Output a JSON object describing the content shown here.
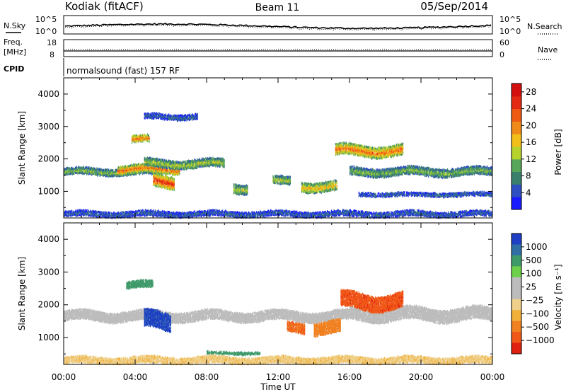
{
  "header": {
    "station": "Kodiak (fitACF)",
    "beam": "Beam 11",
    "date": "05/Sep/2014"
  },
  "noise_panel": {
    "left_label": "N.Sky",
    "right_label": "N.Search",
    "left_ticks": [
      "10^5",
      "10^0"
    ],
    "right_ticks": [
      "10^5",
      "10^0"
    ]
  },
  "freq_panel": {
    "left_label_1": "Freq.",
    "left_label_2": "[MHz]",
    "right_label": "Nave",
    "left_ticks": [
      "18",
      "8"
    ],
    "right_ticks": [
      "60",
      "0"
    ]
  },
  "cpid": {
    "label": "CPID",
    "value": "normalsound (fast) 157 RF"
  },
  "colors": {
    "power_scale": [
      "#1a1aff",
      "#2d4fc0",
      "#3a7f6c",
      "#58a65a",
      "#b8d22c",
      "#f2be1a",
      "#f08a18",
      "#ee5a14",
      "#e42a12",
      "#d4100e"
    ],
    "velocity_pos": [
      "#1f3fc4",
      "#2f6fa6",
      "#3f9a6a",
      "#6ed04a"
    ],
    "velocity_gray": "#bcbcbc",
    "velocity_neg": [
      "#efd08a",
      "#f0b03a",
      "#f08020",
      "#f05818",
      "#e02010"
    ]
  },
  "chart_data": [
    {
      "type": "heatmap",
      "title": "",
      "xlabel": "",
      "ylabel": "Slant Range [km]",
      "x_range_hours": [
        0,
        24
      ],
      "xticks": [
        "00:00",
        "04:00",
        "08:00",
        "12:00",
        "16:00",
        "20:00",
        "00:00"
      ],
      "yticks": [
        "1000",
        "2000",
        "3000",
        "4000"
      ],
      "yticks_values": [
        1000,
        2000,
        3000,
        4000
      ],
      "ylim": [
        180,
        4500
      ],
      "colorbar": {
        "label": "Power [dB]",
        "ticks": [
          "4",
          "8",
          "12",
          "16",
          "20",
          "24",
          "28"
        ],
        "range": [
          0,
          30
        ]
      },
      "echo_regions": [
        {
          "t_start": 0.0,
          "t_end": 5.5,
          "r_center": 1600,
          "r_width": 180,
          "power_db": 12
        },
        {
          "t_start": 3.0,
          "t_end": 6.5,
          "r_center": 1680,
          "r_width": 220,
          "power_db": 22
        },
        {
          "t_start": 5.0,
          "t_end": 6.2,
          "r_center": 1300,
          "r_width": 350,
          "power_db": 26
        },
        {
          "t_start": 3.8,
          "t_end": 4.8,
          "r_center": 2600,
          "r_width": 180,
          "power_db": 22
        },
        {
          "t_start": 4.5,
          "t_end": 9.0,
          "r_center": 1850,
          "r_width": 220,
          "power_db": 14
        },
        {
          "t_start": 4.5,
          "t_end": 7.5,
          "r_center": 3300,
          "r_width": 150,
          "power_db": 6
        },
        {
          "t_start": 9.5,
          "t_end": 10.3,
          "r_center": 1100,
          "r_width": 250,
          "power_db": 14
        },
        {
          "t_start": 11.7,
          "t_end": 12.7,
          "r_center": 1300,
          "r_width": 220,
          "power_db": 14
        },
        {
          "t_start": 13.3,
          "t_end": 15.3,
          "r_center": 1150,
          "r_width": 250,
          "power_db": 18
        },
        {
          "t_start": 15.2,
          "t_end": 19.0,
          "r_center": 2250,
          "r_width": 300,
          "power_db": 22
        },
        {
          "t_start": 16.0,
          "t_end": 24.0,
          "r_center": 1600,
          "r_width": 220,
          "power_db": 12
        },
        {
          "t_start": 16.5,
          "t_end": 24.0,
          "r_center": 900,
          "r_width": 100,
          "power_db": 6
        },
        {
          "t_start": 0.0,
          "t_end": 24.0,
          "r_center": 300,
          "r_width": 150,
          "power_db": 6
        }
      ]
    },
    {
      "type": "heatmap",
      "title": "",
      "xlabel": "Time UT",
      "ylabel": "Slant Range [km]",
      "x_range_hours": [
        0,
        24
      ],
      "xticks": [
        "00:00",
        "04:00",
        "08:00",
        "12:00",
        "16:00",
        "20:00",
        "00:00"
      ],
      "yticks": [
        "1000",
        "2000",
        "3000",
        "4000"
      ],
      "yticks_values": [
        1000,
        2000,
        3000,
        4000
      ],
      "ylim": [
        180,
        4500
      ],
      "colorbar": {
        "label": "Velocity [m s⁻¹]",
        "ticks": [
          "1000",
          "500",
          "100",
          "25",
          "−25",
          "−100",
          "−500",
          "−1000"
        ]
      },
      "echo_regions": [
        {
          "t_start": 0.0,
          "t_end": 16.0,
          "r_center": 1650,
          "r_width": 280,
          "velocity": 0
        },
        {
          "t_start": 16.0,
          "t_end": 24.0,
          "r_center": 1700,
          "r_width": 350,
          "velocity": 0
        },
        {
          "t_start": 4.5,
          "t_end": 6.0,
          "r_center": 1500,
          "r_width": 500,
          "velocity": 600
        },
        {
          "t_start": 3.5,
          "t_end": 5.0,
          "r_center": 2600,
          "r_width": 200,
          "velocity": 100
        },
        {
          "t_start": 12.5,
          "t_end": 13.5,
          "r_center": 1300,
          "r_width": 250,
          "velocity": -300
        },
        {
          "t_start": 14.0,
          "t_end": 15.5,
          "r_center": 1300,
          "r_width": 350,
          "velocity": -200
        },
        {
          "t_start": 15.5,
          "t_end": 19.0,
          "r_center": 2100,
          "r_width": 450,
          "velocity": -500
        },
        {
          "t_start": 8.0,
          "t_end": 11.0,
          "r_center": 520,
          "r_width": 60,
          "velocity": 100
        },
        {
          "t_start": 0.0,
          "t_end": 24.0,
          "r_center": 300,
          "r_width": 180,
          "velocity": -50
        }
      ]
    }
  ]
}
